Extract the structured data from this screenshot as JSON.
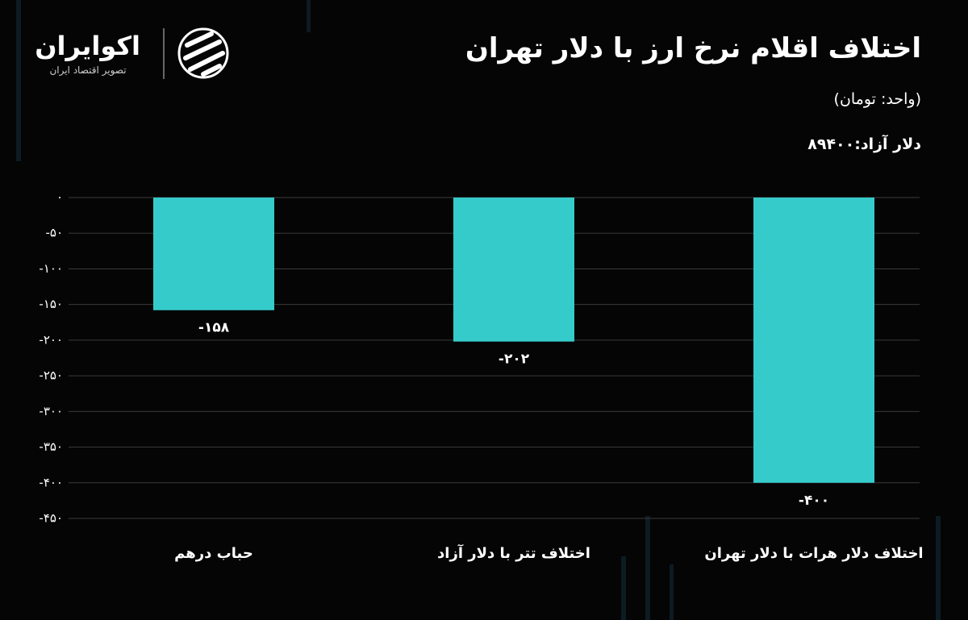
{
  "brand": {
    "name": "اکوایران",
    "tagline": "تصویر اقتصاد ایران"
  },
  "chart_data": {
    "type": "bar",
    "title": "اختلاف اقلام نرخ ارز با دلار تهران",
    "subtitle": "(واحد: تومان)",
    "note": "دلار آزاد:۸۹۴۰۰",
    "categories": [
      "حباب درهم",
      "اختلاف تتر با دلار آزاد",
      "اختلاف دلار هرات با دلار تهران"
    ],
    "values": [
      -158,
      -202,
      -400
    ],
    "value_labels": [
      "-۱۵۸",
      "-۲۰۲",
      "-۴۰۰"
    ],
    "color": "#36cbcb",
    "ylim": [
      -450,
      0
    ],
    "yticks": [
      {
        "value": 0,
        "label": "۰"
      },
      {
        "value": -50,
        "label": "-۵۰"
      },
      {
        "value": -100,
        "label": "-۱۰۰"
      },
      {
        "value": -150,
        "label": "-۱۵۰"
      },
      {
        "value": -200,
        "label": "-۲۰۰"
      },
      {
        "value": -250,
        "label": "-۲۵۰"
      },
      {
        "value": -300,
        "label": "-۳۰۰"
      },
      {
        "value": -350,
        "label": "-۳۵۰"
      },
      {
        "value": -400,
        "label": "-۴۰۰"
      },
      {
        "value": -450,
        "label": "-۴۵۰"
      }
    ],
    "grid": true
  }
}
